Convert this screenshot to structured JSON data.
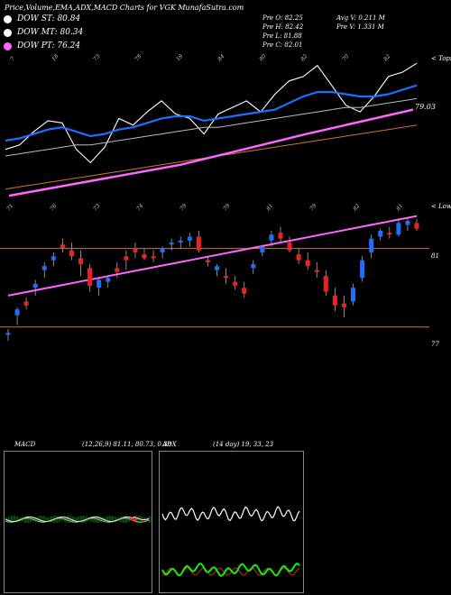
{
  "header": {
    "title": "Price,Volume,EMA,ADX,MACD Charts for VGK MunafaSutra.com"
  },
  "legend": [
    {
      "label": "DOW ST: 80.84",
      "color": "#ffffff"
    },
    {
      "label": "DOW MT: 80.34",
      "color": "#ffffff"
    },
    {
      "label": "DOW PT: 76.24",
      "color": "#ff66ff"
    }
  ],
  "quote": {
    "col1": [
      "Pre  O: 82.25",
      "Pre  H: 82.42",
      "Pre  L: 81.88",
      "Pre  C: 82.01"
    ],
    "col2": [
      "Avg V: 0.211 M",
      "Pre  V: 1.331 M"
    ]
  },
  "top_panel": {
    "tag": "< Tops",
    "value_label": "79.03",
    "tops": [
      "7",
      "18",
      "73",
      "78",
      "18",
      "84",
      "80",
      "82",
      "70",
      "82"
    ]
  },
  "price_panel": {
    "tag": "< Lows",
    "price_levels": [
      "81",
      "77"
    ],
    "lows": [
      "71",
      "76",
      "73",
      "74",
      "79",
      "79",
      "81",
      "79",
      "82",
      "81"
    ]
  },
  "macd_panel": {
    "label": "MACD",
    "params": "(12,26,9) 81.11, 80.73, 0.38"
  },
  "adx_panel": {
    "label": "ADX",
    "params": "(14 day) 19, 33, 23"
  },
  "colors": {
    "bull": "#1f6fff",
    "bear": "#ee2222",
    "ema_pink": "#ff66ff",
    "orange": "#cc7733",
    "macd_green": "#0a4a0a",
    "adx_green": "#11ee11",
    "adx_red": "#cc3311"
  },
  "chart_data": [
    {
      "type": "line",
      "title": "Price, EMA (tops)",
      "series": [
        {
          "values": [
            78.2,
            78.4,
            79.0,
            79.5,
            79.4,
            78.2,
            77.6,
            78.3,
            79.6,
            79.3,
            79.9,
            80.4,
            79.8,
            79.6,
            78.9,
            79.8,
            80.1,
            80.4,
            79.9,
            80.7,
            81.3,
            81.5,
            82.0,
            81.1,
            80.2,
            79.9,
            80.6,
            81.5,
            81.7,
            82.1
          ]
        },
        {
          "values": [
            78.6,
            78.7,
            78.9,
            79.1,
            79.2,
            79.0,
            78.8,
            78.9,
            79.1,
            79.2,
            79.4,
            79.6,
            79.7,
            79.7,
            79.5,
            79.6,
            79.7,
            79.8,
            79.9,
            80.0,
            80.3,
            80.6,
            80.8,
            80.8,
            80.7,
            80.6,
            80.6,
            80.7,
            80.9,
            81.1
          ]
        },
        {
          "values": [
            77.9,
            78.0,
            78.1,
            78.2,
            78.3,
            78.4,
            78.4,
            78.5,
            78.6,
            78.7,
            78.8,
            78.9,
            79.0,
            79.1,
            79.2,
            79.2,
            79.3,
            79.4,
            79.5,
            79.6,
            79.7,
            79.8,
            79.9,
            80.0,
            80.1,
            80.1,
            80.2,
            80.3,
            80.4,
            80.5
          ]
        },
        {
          "values": [
            76.4,
            76.5,
            76.6,
            76.7,
            76.8,
            76.9,
            77.0,
            77.1,
            77.2,
            77.3,
            77.4,
            77.5,
            77.6,
            77.7,
            77.8,
            77.9,
            78.0,
            78.1,
            78.2,
            78.3,
            78.4,
            78.5,
            78.6,
            78.7,
            78.8,
            78.9,
            79.0,
            79.1,
            79.2,
            79.3
          ]
        }
      ]
    },
    {
      "type": "candlestick",
      "title": "Price candles",
      "series": [
        {
          "values": [
            [
              76.6,
              76.9,
              76.3,
              76.7
            ],
            [
              77.6,
              78.0,
              77.1,
              77.9
            ],
            [
              78.3,
              78.5,
              77.9,
              78.1
            ],
            [
              79.0,
              79.4,
              78.6,
              79.2
            ],
            [
              79.9,
              80.3,
              79.5,
              80.1
            ],
            [
              80.4,
              80.8,
              80.1,
              80.6
            ],
            [
              81.2,
              81.5,
              80.8,
              81.0
            ],
            [
              80.9,
              81.3,
              80.4,
              80.6
            ],
            [
              80.5,
              80.9,
              79.6,
              80.2
            ],
            [
              80.0,
              80.2,
              78.8,
              79.1
            ],
            [
              79.0,
              79.5,
              78.6,
              79.4
            ],
            [
              79.3,
              79.6,
              79.0,
              79.5
            ],
            [
              80.0,
              80.3,
              79.5,
              79.8
            ],
            [
              80.6,
              80.9,
              79.9,
              80.4
            ],
            [
              81.0,
              81.3,
              80.5,
              80.8
            ],
            [
              80.7,
              81.0,
              80.4,
              80.5
            ],
            [
              80.6,
              80.9,
              80.3,
              80.5
            ],
            [
              80.8,
              81.1,
              80.5,
              81.0
            ],
            [
              81.2,
              81.5,
              80.9,
              81.3
            ],
            [
              81.3,
              81.6,
              81.0,
              81.4
            ],
            [
              81.4,
              81.8,
              81.1,
              81.6
            ],
            [
              81.6,
              81.9,
              80.8,
              80.9
            ],
            [
              80.4,
              80.6,
              80.1,
              80.3
            ],
            [
              79.9,
              80.2,
              79.6,
              80.1
            ],
            [
              79.6,
              80.0,
              79.2,
              79.5
            ],
            [
              79.3,
              79.6,
              78.9,
              79.1
            ],
            [
              79.0,
              79.3,
              78.5,
              78.7
            ],
            [
              80.0,
              80.4,
              79.7,
              80.2
            ],
            [
              80.8,
              81.2,
              80.6,
              81.1
            ],
            [
              81.4,
              81.9,
              81.1,
              81.7
            ],
            [
              81.8,
              82.1,
              81.3,
              81.5
            ],
            [
              81.3,
              81.6,
              80.8,
              80.9
            ],
            [
              80.7,
              81.0,
              80.2,
              80.4
            ],
            [
              80.4,
              80.8,
              79.9,
              80.1
            ],
            [
              79.9,
              80.3,
              79.5,
              79.8
            ],
            [
              79.6,
              79.9,
              78.6,
              78.8
            ],
            [
              78.6,
              79.0,
              77.8,
              78.1
            ],
            [
              78.2,
              78.6,
              77.5,
              78.0
            ],
            [
              78.3,
              79.2,
              78.1,
              79.0
            ],
            [
              79.5,
              80.6,
              79.3,
              80.4
            ],
            [
              80.8,
              81.7,
              80.5,
              81.5
            ],
            [
              81.6,
              82.0,
              81.4,
              81.9
            ],
            [
              81.8,
              82.1,
              81.5,
              81.7
            ],
            [
              81.7,
              82.5,
              81.6,
              82.3
            ],
            [
              82.2,
              82.6,
              81.9,
              82.4
            ],
            [
              82.3,
              82.5,
              81.9,
              82.0
            ]
          ]
        }
      ]
    }
  ]
}
